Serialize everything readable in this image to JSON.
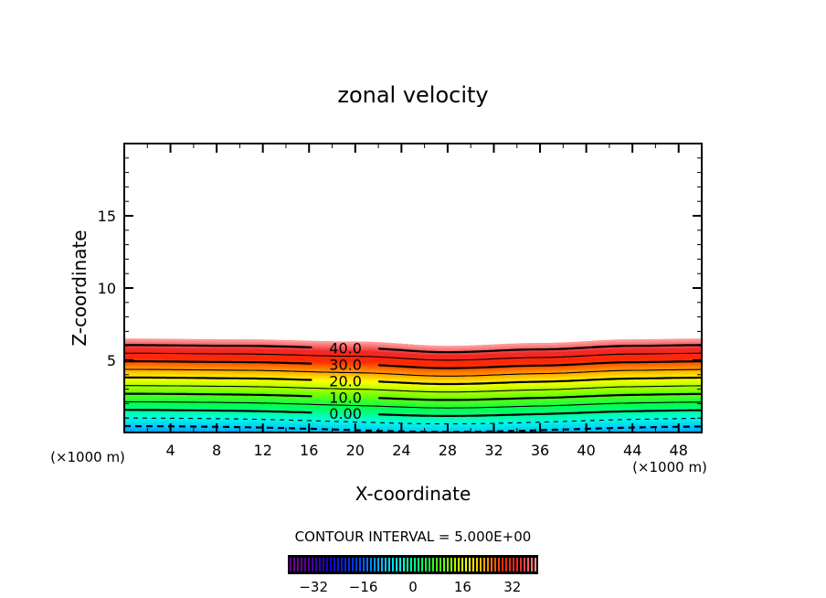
{
  "chart_data": {
    "type": "heatmap",
    "subtype": "filled-contour",
    "title": "zonal velocity",
    "xlabel": "X-coordinate",
    "ylabel": "Z-coordinate",
    "x_unit_label": "(×1000 m)",
    "x_unit_label_right": "(×1000 m)",
    "xlim": [
      0,
      50
    ],
    "ylim": [
      0,
      20
    ],
    "x_ticks": [
      4,
      8,
      12,
      16,
      20,
      24,
      28,
      32,
      36,
      40,
      44,
      48
    ],
    "x_minor_step": 2,
    "y_ticks": [
      5,
      10,
      15
    ],
    "y_minor_step": 1,
    "grid": false,
    "field": {
      "description": "Zonal velocity increases linearly with height up to a top boundary, with a trough near x=28",
      "top_boundary_z": [
        {
          "x": 0,
          "z": 6.5
        },
        {
          "x": 10,
          "z": 6.45
        },
        {
          "x": 20,
          "z": 6.3
        },
        {
          "x": 28,
          "z": 6.0
        },
        {
          "x": 36,
          "z": 6.2
        },
        {
          "x": 44,
          "z": 6.45
        },
        {
          "x": 50,
          "z": 6.5
        }
      ],
      "value_at_bottom": -14,
      "value_at_top": 44
    },
    "contour_interval": 5.0,
    "contour_levels": [
      -10,
      -5,
      0,
      5,
      10,
      15,
      20,
      25,
      30,
      35,
      40
    ],
    "contour_labels": [
      {
        "level": 40,
        "text": "40.0"
      },
      {
        "level": 30,
        "text": "30.0"
      },
      {
        "level": 20,
        "text": "20.0"
      },
      {
        "level": 10,
        "text": "10.0"
      },
      {
        "level": 0,
        "text": "0.00"
      }
    ],
    "negative_contours_dashed": true,
    "contour_interval_text": "CONTOUR INTERVAL = 5.000E+00",
    "colorbar": {
      "range": [
        -40,
        40
      ],
      "ticks": [
        -32,
        -16,
        0,
        16,
        32
      ],
      "tick_labels": [
        "−32",
        "−16",
        "0",
        "16",
        "32"
      ],
      "placement": "bottom",
      "colormap": "rainbow (purple-blue-cyan-green-yellow-red-pink)"
    }
  }
}
